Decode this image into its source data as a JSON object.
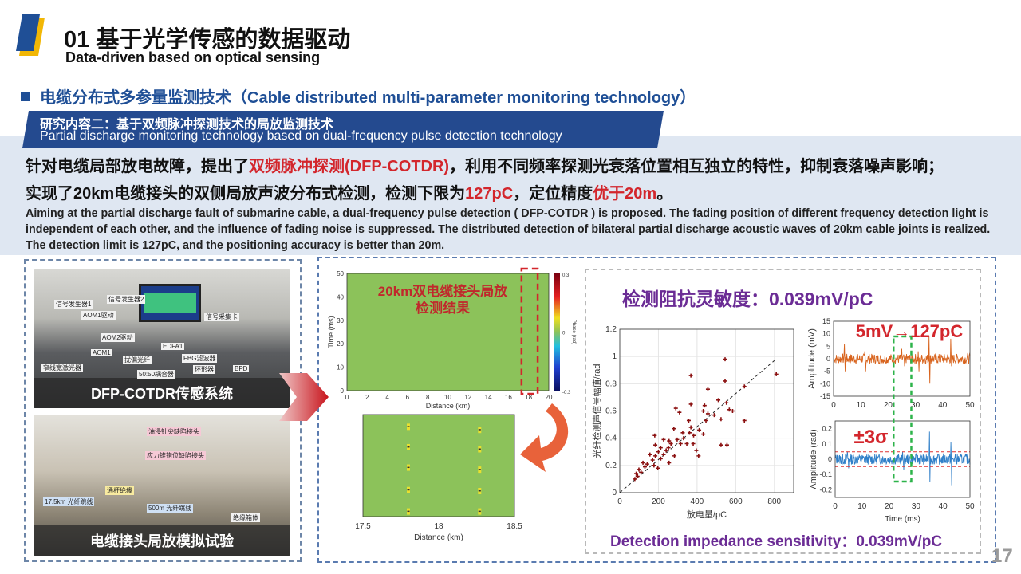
{
  "header": {
    "section_number_title": "01 基于光学传感的数据驱动",
    "subtitle": "Data-driven based on optical sensing"
  },
  "section": {
    "title": "电缆分布式多参量监测技术（Cable distributed multi-parameter monitoring technology）"
  },
  "banner": {
    "cn": "研究内容二：基于双频脉冲探测技术的局放监测技术",
    "en": "Partial discharge monitoring technology based on dual-frequency pulse detection technology"
  },
  "summary": {
    "line1": [
      {
        "t": "针对电缆局部放电故障，提出了",
        "r": false
      },
      {
        "t": "双频脉冲探测(DFP-COTDR)",
        "r": true
      },
      {
        "t": "，利用不同频率探测光衰落位置相互独立的特性，抑制衰落噪声影响；",
        "r": false
      }
    ],
    "line2": [
      {
        "t": "实现了20km电缆接头的双侧局放声波分布式检测，检测下限为",
        "r": false
      },
      {
        "t": "127pC",
        "r": true
      },
      {
        "t": "，定位精度",
        "r": false
      },
      {
        "t": "优于20m",
        "r": true
      },
      {
        "t": "。",
        "r": false
      }
    ],
    "english": "Aiming at the partial discharge fault of submarine cable, a dual-frequency pulse detection ( DFP-COTDR ) is proposed. The fading position of different frequency detection light is independent of each other, and the influence of fading noise is suppressed. The distributed detection of bilateral partial discharge acoustic waves of 20km cable joints is realized. The detection limit is 127pC, and the positioning accuracy is better than 20m."
  },
  "photos": [
    {
      "caption": "DFP-COTDR传感系统",
      "labels": [
        "信号发生器1",
        "信号发生器2",
        "AOM1驱动",
        "AOM2驱动",
        "EDFA1",
        "AOM1",
        "FBG滤波器",
        "环形器",
        "BPD",
        "50:50耦合器",
        "窄线宽激光器",
        "扰偏光纤",
        "信号采集卡",
        "AOM2"
      ]
    },
    {
      "caption": "电缆接头局放模拟试验",
      "labels": [
        "油浸针尖缺陷接头",
        "应力锥错位缺陷接头",
        "通杆绝缘",
        "17.5km 光纤跳线",
        "500m 光纤跳线",
        "绝缘箱体"
      ]
    }
  ],
  "colors": {
    "accent_blue": "#1f4f96",
    "highlight_red": "#d3262c",
    "purple": "#6b2c95",
    "heatmap_green": "#8cc25a",
    "signal_orange": "#d8641e",
    "signal_blue": "#2f7fc8",
    "box_green": "#2db34a"
  },
  "middle": {
    "annotation": [
      "20km双电缆接头局放",
      "检测结果"
    ]
  },
  "right": {
    "title": "检测阻抗灵敏度：0.039mV/pC",
    "footer": "Detection impedance sensitivity：0.039mV/pC",
    "annot_top": "5mV→127pC",
    "annot_bottom": "±3σ"
  },
  "page_number": "17",
  "chart_data": [
    {
      "type": "heatmap",
      "xlabel": "Distance (km)",
      "ylabel": "Time (ms)",
      "xlim": [
        0,
        20
      ],
      "ylim": [
        0,
        50
      ],
      "xticks": [
        0,
        2,
        4,
        6,
        8,
        10,
        12,
        14,
        16,
        18,
        20
      ],
      "yticks": [
        0,
        10,
        20,
        30,
        40,
        50
      ],
      "colorbar": {
        "label": "Phase (rad)",
        "ticks": [
          "0.3",
          "0",
          "-0.3"
        ],
        "range": [
          -0.3,
          0.3
        ]
      },
      "highlight_region_km": [
        17.3,
        18.9
      ]
    },
    {
      "type": "heatmap",
      "xlabel": "Distance (km)",
      "xlim": [
        17.5,
        18.5
      ],
      "xticks": [
        "17.5",
        "18",
        "18.5"
      ],
      "events": [
        {
          "x": 17.8,
          "t": [
            0.88,
            0.68,
            0.48,
            0.26,
            0.05
          ]
        },
        {
          "x": 18.27,
          "t": [
            0.85,
            0.66,
            0.46,
            0.25,
            0.05
          ]
        }
      ]
    },
    {
      "type": "scatter",
      "xlabel": "放电量/pC",
      "ylabel": "光纤检测声信号幅值/rad",
      "xlim": [
        0,
        900
      ],
      "ylim": [
        0,
        1.2
      ],
      "xticks": [
        0,
        200,
        400,
        600,
        800
      ],
      "yticks": [
        0,
        0.2,
        0.4,
        0.6,
        0.8,
        1,
        1.2
      ],
      "grid": true,
      "trendline": {
        "x": [
          0,
          800
        ],
        "y": [
          0,
          0.97
        ]
      },
      "points": [
        [
          545,
          0.98
        ],
        [
          368,
          0.86
        ],
        [
          545,
          0.82
        ],
        [
          456,
          0.76
        ],
        [
          810,
          0.87
        ],
        [
          645,
          0.78
        ],
        [
          510,
          0.68
        ],
        [
          552,
          0.66
        ],
        [
          368,
          0.65
        ],
        [
          290,
          0.62
        ],
        [
          309,
          0.59
        ],
        [
          439,
          0.64
        ],
        [
          432,
          0.6
        ],
        [
          456,
          0.58
        ],
        [
          489,
          0.57
        ],
        [
          567,
          0.61
        ],
        [
          584,
          0.6
        ],
        [
          645,
          0.53
        ],
        [
          524,
          0.54
        ],
        [
          446,
          0.53
        ],
        [
          357,
          0.53
        ],
        [
          368,
          0.48
        ],
        [
          411,
          0.46
        ],
        [
          432,
          0.43
        ],
        [
          280,
          0.47
        ],
        [
          326,
          0.44
        ],
        [
          361,
          0.44
        ],
        [
          382,
          0.42
        ],
        [
          380,
          0.36
        ],
        [
          347,
          0.36
        ],
        [
          315,
          0.36
        ],
        [
          297,
          0.39
        ],
        [
          255,
          0.38
        ],
        [
          227,
          0.39
        ],
        [
          181,
          0.42
        ],
        [
          184,
          0.35
        ],
        [
          212,
          0.33
        ],
        [
          252,
          0.33
        ],
        [
          283,
          0.27
        ],
        [
          255,
          0.22
        ],
        [
          184,
          0.27
        ],
        [
          177,
          0.2
        ],
        [
          197,
          0.18
        ],
        [
          142,
          0.21
        ],
        [
          120,
          0.22
        ],
        [
          99,
          0.17
        ],
        [
          85,
          0.14
        ],
        [
          78,
          0.1
        ],
        [
          92,
          0.12
        ],
        [
          524,
          0.35
        ],
        [
          555,
          0.35
        ],
        [
          408,
          0.27
        ],
        [
          396,
          0.31
        ],
        [
          156,
          0.28
        ],
        [
          212,
          0.25
        ],
        [
          227,
          0.28
        ],
        [
          200,
          0.3
        ],
        [
          170,
          0.24
        ],
        [
          240,
          0.31
        ],
        [
          265,
          0.36
        ],
        [
          330,
          0.4
        ],
        [
          110,
          0.15
        ],
        [
          130,
          0.19
        ]
      ]
    },
    {
      "type": "line",
      "ylabel": "Amplitude (mV)",
      "xlim": [
        0,
        50
      ],
      "ylim": [
        -15,
        15
      ],
      "xticks": [
        0,
        10,
        20,
        30,
        40,
        50
      ],
      "yticks": [
        15,
        10,
        5,
        0,
        -5,
        -10,
        -15
      ],
      "noise_amplitude": 2,
      "spikes": [
        [
          4,
          6
        ],
        [
          4.3,
          -5
        ],
        [
          11.5,
          3
        ],
        [
          11.8,
          -5
        ],
        [
          25,
          4
        ],
        [
          26,
          -3
        ],
        [
          31,
          3
        ],
        [
          31.3,
          -5
        ],
        [
          35,
          9
        ],
        [
          35.3,
          -10
        ],
        [
          43,
          8
        ],
        [
          43.3,
          -3
        ]
      ],
      "highlight_ms": [
        22,
        28.5
      ]
    },
    {
      "type": "line",
      "xlabel": "Time (ms)",
      "ylabel": "Amplitude (rad)",
      "xlim": [
        0,
        50
      ],
      "ylim": [
        -0.25,
        0.25
      ],
      "xticks": [
        0,
        10,
        20,
        30,
        40,
        50
      ],
      "yticks": [
        0.2,
        0.1,
        0,
        -0.1,
        -0.2
      ],
      "noise_amplitude": 0.035,
      "threshold": 0.048,
      "spikes": [
        [
          4.5,
          0.05
        ],
        [
          5,
          -0.06
        ],
        [
          25,
          0.05
        ],
        [
          25.5,
          -0.07
        ],
        [
          35,
          0.18
        ],
        [
          35.2,
          -0.15
        ],
        [
          43,
          0.11
        ],
        [
          43.3,
          -0.17
        ]
      ],
      "highlight_ms": [
        22,
        28.5
      ]
    }
  ]
}
